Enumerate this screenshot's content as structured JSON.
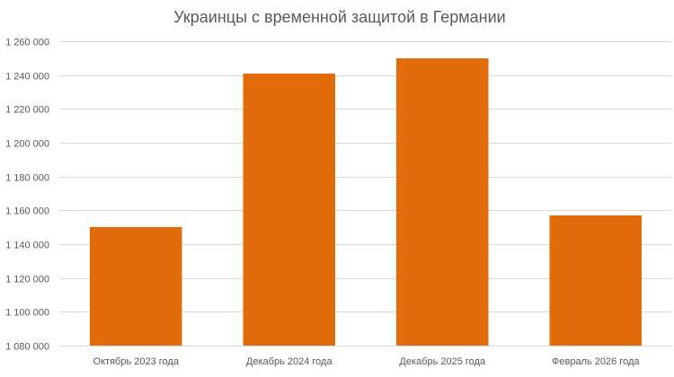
{
  "chart_data": {
    "type": "bar",
    "title": "Украинцы с временной защитой в Германии",
    "categories": [
      "Октябрь 2023 года",
      "Декабрь 2024 года",
      "Декабрь 2025 года",
      "Февраль 2026 года"
    ],
    "values": [
      1150000,
      1241000,
      1250000,
      1157000
    ],
    "ylim": [
      1080000,
      1260000
    ],
    "yticks": [
      1080000,
      1100000,
      1120000,
      1140000,
      1160000,
      1180000,
      1200000,
      1220000,
      1240000,
      1260000
    ],
    "ytick_labels": [
      "1 080 000",
      "1 100 000",
      "1 120 000",
      "1 140 000",
      "1 160 000",
      "1 180 000",
      "1 200 000",
      "1 220 000",
      "1 240 000",
      "1 260 000"
    ],
    "bar_color": "#e36c0a",
    "grid": true,
    "legend": "none"
  }
}
